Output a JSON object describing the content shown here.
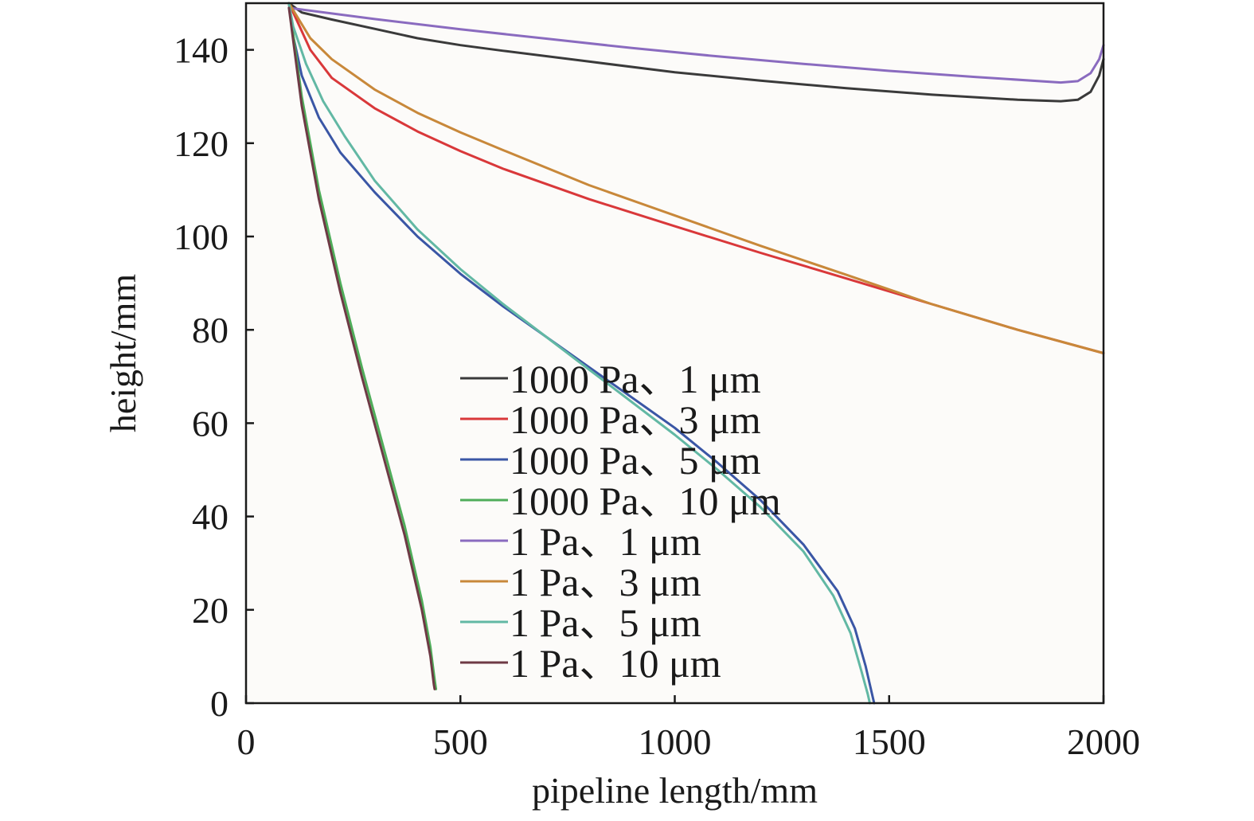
{
  "chart_data": {
    "type": "line",
    "xlabel": "pipeline length/mm",
    "ylabel": "height/mm",
    "xlim": [
      0,
      2000
    ],
    "ylim": [
      0,
      150
    ],
    "x_ticks": [
      "0",
      "500",
      "1000",
      "1500",
      "2000"
    ],
    "y_ticks": [
      "0",
      "20",
      "40",
      "60",
      "80",
      "100",
      "120",
      "140"
    ],
    "grid": false,
    "legend_position": "center",
    "plot_background": "#fcfbf9",
    "series": [
      {
        "name": "1000 Pa、1 μm",
        "color": "#3a3a3a",
        "x": [
          100,
          130,
          200,
          300,
          400,
          500,
          600,
          800,
          1000,
          1200,
          1400,
          1600,
          1800,
          1900,
          1940,
          1970,
          1990,
          2000
        ],
        "y": [
          150,
          148,
          146.5,
          144.5,
          142.5,
          141,
          139.8,
          137.5,
          135.2,
          133.4,
          131.8,
          130.4,
          129.3,
          129,
          129.3,
          131,
          134.5,
          138
        ]
      },
      {
        "name": "1000 Pa、3 μm",
        "color": "#d9383a",
        "x": [
          100,
          150,
          200,
          300,
          400,
          500,
          600,
          800,
          1000,
          1200,
          1400,
          1600,
          1800,
          2000
        ],
        "y": [
          150,
          140,
          134,
          127.5,
          122.5,
          118.3,
          114.5,
          108,
          102.2,
          96.5,
          91,
          85.5,
          80,
          75
        ]
      },
      {
        "name": "1000 Pa、5 μm",
        "color": "#3a56a5",
        "x": [
          100,
          110,
          130,
          170,
          220,
          300,
          400,
          500,
          600,
          700,
          800,
          900,
          1000,
          1100,
          1200,
          1300,
          1380,
          1420,
          1445,
          1460,
          1465
        ],
        "y": [
          150,
          143,
          134.5,
          125.5,
          118,
          109.5,
          100,
          92,
          85,
          78.5,
          72,
          65.5,
          59,
          51.5,
          43.5,
          34,
          24,
          16,
          8,
          2,
          0
        ]
      },
      {
        "name": "1000 Pa、10 μm",
        "color": "#4fad5a",
        "x": [
          100,
          130,
          170,
          220,
          270,
          320,
          370,
          410,
          430,
          440,
          443
        ],
        "y": [
          150,
          130,
          110,
          90,
          72,
          55,
          38,
          22,
          12,
          5,
          3
        ]
      },
      {
        "name": "1 Pa、1 μm",
        "color": "#8a6bbf",
        "x": [
          100,
          300,
          500,
          700,
          900,
          1100,
          1300,
          1500,
          1700,
          1900,
          1940,
          1970,
          1990,
          2000
        ],
        "y": [
          149,
          146.6,
          144.4,
          142.4,
          140.4,
          138.6,
          137,
          135.5,
          134.2,
          133,
          133.3,
          135,
          138,
          141
        ]
      },
      {
        "name": "1 Pa、3 μm",
        "color": "#c8883a",
        "x": [
          100,
          150,
          200,
          300,
          400,
          500,
          600,
          800,
          1000,
          1200,
          1400,
          1600,
          1800,
          2000
        ],
        "y": [
          150,
          142.5,
          138,
          131.5,
          126.5,
          122.3,
          118.5,
          111,
          104.5,
          98,
          91.8,
          85.5,
          80,
          75
        ]
      },
      {
        "name": "1 Pa、5 μm",
        "color": "#62b8a4",
        "x": [
          100,
          110,
          140,
          180,
          230,
          300,
          400,
          500,
          600,
          700,
          800,
          900,
          1000,
          1100,
          1200,
          1300,
          1370,
          1410,
          1435,
          1450,
          1455
        ],
        "y": [
          150,
          145,
          137,
          129,
          121.5,
          112,
          101.5,
          93,
          85.5,
          78.5,
          71.5,
          64.5,
          57.5,
          50,
          42,
          32.5,
          23,
          15,
          7,
          2,
          0
        ]
      },
      {
        "name": "1 Pa、10 μm",
        "color": "#6e3a45",
        "x": [
          100,
          130,
          170,
          220,
          270,
          320,
          370,
          410,
          430,
          438,
          440
        ],
        "y": [
          149,
          128,
          108,
          88,
          70,
          53,
          36,
          20,
          10,
          4,
          3
        ]
      }
    ]
  }
}
